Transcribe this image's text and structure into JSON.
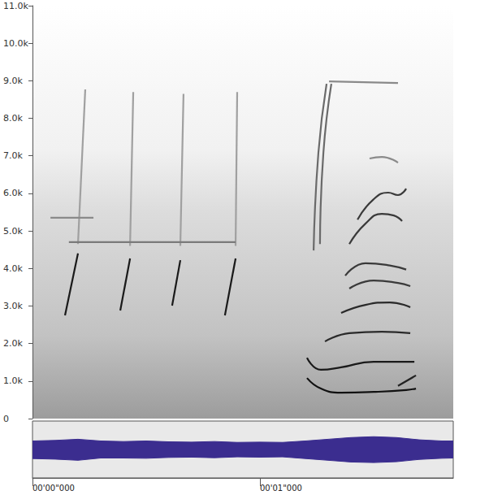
{
  "chart_data": {
    "type": "spectrogram",
    "xlim": [
      0,
      1.85
    ],
    "xticks": [
      {
        "value": 0,
        "label": "00'00\"000"
      },
      {
        "value": 1,
        "label": "00'01\"000"
      }
    ],
    "ylim": [
      0,
      11000
    ],
    "yticks": [
      0,
      {
        "value": 1000,
        "label": "1.0k"
      },
      {
        "value": 2000,
        "label": "2.0k"
      },
      {
        "value": 3000,
        "label": "3.0k"
      },
      {
        "value": 4000,
        "label": "4.0k"
      },
      {
        "value": 5000,
        "label": "5.0k"
      },
      {
        "value": 6000,
        "label": "6.0k"
      },
      {
        "value": 7000,
        "label": "7.0k"
      },
      {
        "value": 8000,
        "label": "8.0k"
      },
      {
        "value": 9000,
        "label": "9.0k"
      },
      {
        "value": 10000,
        "label": "10.0k"
      },
      {
        "value": 11000,
        "label": "11.0k"
      }
    ],
    "series": [
      {
        "color": "#1a1a1a",
        "x": [
          0.143,
          0.2
        ],
        "values": [
          2750,
          4400
        ]
      },
      {
        "color": "#1a1a1a",
        "x": [
          0.386,
          0.429
        ],
        "values": [
          2880,
          4265
        ]
      },
      {
        "color": "#1a1a1a",
        "x": [
          0.614,
          0.65
        ],
        "values": [
          3010,
          4220
        ]
      },
      {
        "color": "#1a1a1a",
        "x": [
          0.846,
          0.893
        ],
        "values": [
          2750,
          4265
        ]
      },
      {
        "color": "#a0a0a0",
        "x": [
          0.2,
          0.232
        ],
        "values": [
          4650,
          8770
        ]
      },
      {
        "color": "#a0a0a0",
        "x": [
          0.429,
          0.443
        ],
        "values": [
          4600,
          8700
        ]
      },
      {
        "color": "#a0a0a0",
        "x": [
          0.65,
          0.664
        ],
        "values": [
          4600,
          8650
        ]
      },
      {
        "color": "#a0a0a0",
        "x": [
          0.893,
          0.9
        ],
        "values": [
          4600,
          8700
        ]
      },
      {
        "color": "#7a7a7a",
        "x": [
          0.16,
          0.893
        ],
        "values": [
          4700,
          4700
        ]
      },
      {
        "color": "#8a8a8a",
        "x": [
          0.079,
          0.268
        ],
        "values": [
          5350,
          5350
        ]
      },
      {
        "color": "#6a6a6a",
        "x": [
          1.236,
          1.257,
          1.293
        ],
        "values": [
          4480,
          7080,
          8920
        ]
      },
      {
        "color": "#6a6a6a",
        "x": [
          1.264,
          1.279,
          1.314
        ],
        "values": [
          4650,
          7080,
          8920
        ]
      },
      {
        "color": "#8a8a8a",
        "x": [
          1.304,
          1.607
        ],
        "values": [
          8985,
          8940
        ]
      },
      {
        "color": "#111111",
        "x": [
          1.207,
          1.268,
          1.357,
          1.5,
          1.643,
          1.686
        ],
        "values": [
          1080,
          800,
          690,
          710,
          760,
          800
        ]
      },
      {
        "color": "#222222",
        "x": [
          1.607,
          1.686
        ],
        "values": [
          870,
          1150
        ]
      },
      {
        "color": "#1a1a1a",
        "x": [
          1.207,
          1.268,
          1.357,
          1.5,
          1.679
        ],
        "values": [
          1620,
          1300,
          1365,
          1515,
          1515
        ]
      },
      {
        "color": "#2a2a2a",
        "x": [
          1.286,
          1.393,
          1.536,
          1.661
        ],
        "values": [
          2055,
          2275,
          2315,
          2275
        ]
      },
      {
        "color": "#2a2a2a",
        "x": [
          1.357,
          1.464,
          1.571,
          1.661
        ],
        "values": [
          2815,
          3030,
          3095,
          2965
        ]
      },
      {
        "color": "#3a3a3a",
        "x": [
          1.393,
          1.5,
          1.607,
          1.661
        ],
        "values": [
          3465,
          3680,
          3615,
          3530
        ]
      },
      {
        "color": "#3a3a3a",
        "x": [
          1.375,
          1.464,
          1.571,
          1.643
        ],
        "values": [
          3810,
          4140,
          4080,
          3970
        ]
      },
      {
        "color": "#3a3a3a",
        "x": [
          1.393,
          1.464,
          1.536,
          1.589,
          1.625
        ],
        "values": [
          4650,
          5195,
          5455,
          5410,
          5260
        ]
      },
      {
        "color": "#3a3a3a",
        "x": [
          1.429,
          1.5,
          1.564,
          1.607,
          1.643
        ],
        "values": [
          5300,
          5845,
          6020,
          5955,
          6125
        ]
      },
      {
        "color": "#8a8a8a",
        "x": [
          1.482,
          1.536,
          1.607
        ],
        "values": [
          6930,
          6970,
          6820
        ]
      }
    ],
    "waveform": {
      "color": "#3b2d8f",
      "ylim": [
        -1,
        1
      ],
      "x": [
        0,
        0.1,
        0.2,
        0.3,
        0.4,
        0.5,
        0.6,
        0.7,
        0.8,
        0.9,
        1.0,
        1.1,
        1.2,
        1.3,
        1.4,
        1.5,
        1.6,
        1.7,
        1.8,
        1.85
      ],
      "upper": [
        0.3,
        0.32,
        0.36,
        0.3,
        0.28,
        0.3,
        0.27,
        0.26,
        0.28,
        0.25,
        0.26,
        0.25,
        0.3,
        0.36,
        0.42,
        0.45,
        0.42,
        0.34,
        0.3,
        0.3
      ],
      "lower": [
        -0.32,
        -0.34,
        -0.38,
        -0.3,
        -0.3,
        -0.31,
        -0.28,
        -0.27,
        -0.29,
        -0.26,
        -0.27,
        -0.26,
        -0.32,
        -0.38,
        -0.44,
        -0.46,
        -0.43,
        -0.35,
        -0.31,
        -0.3
      ]
    }
  }
}
